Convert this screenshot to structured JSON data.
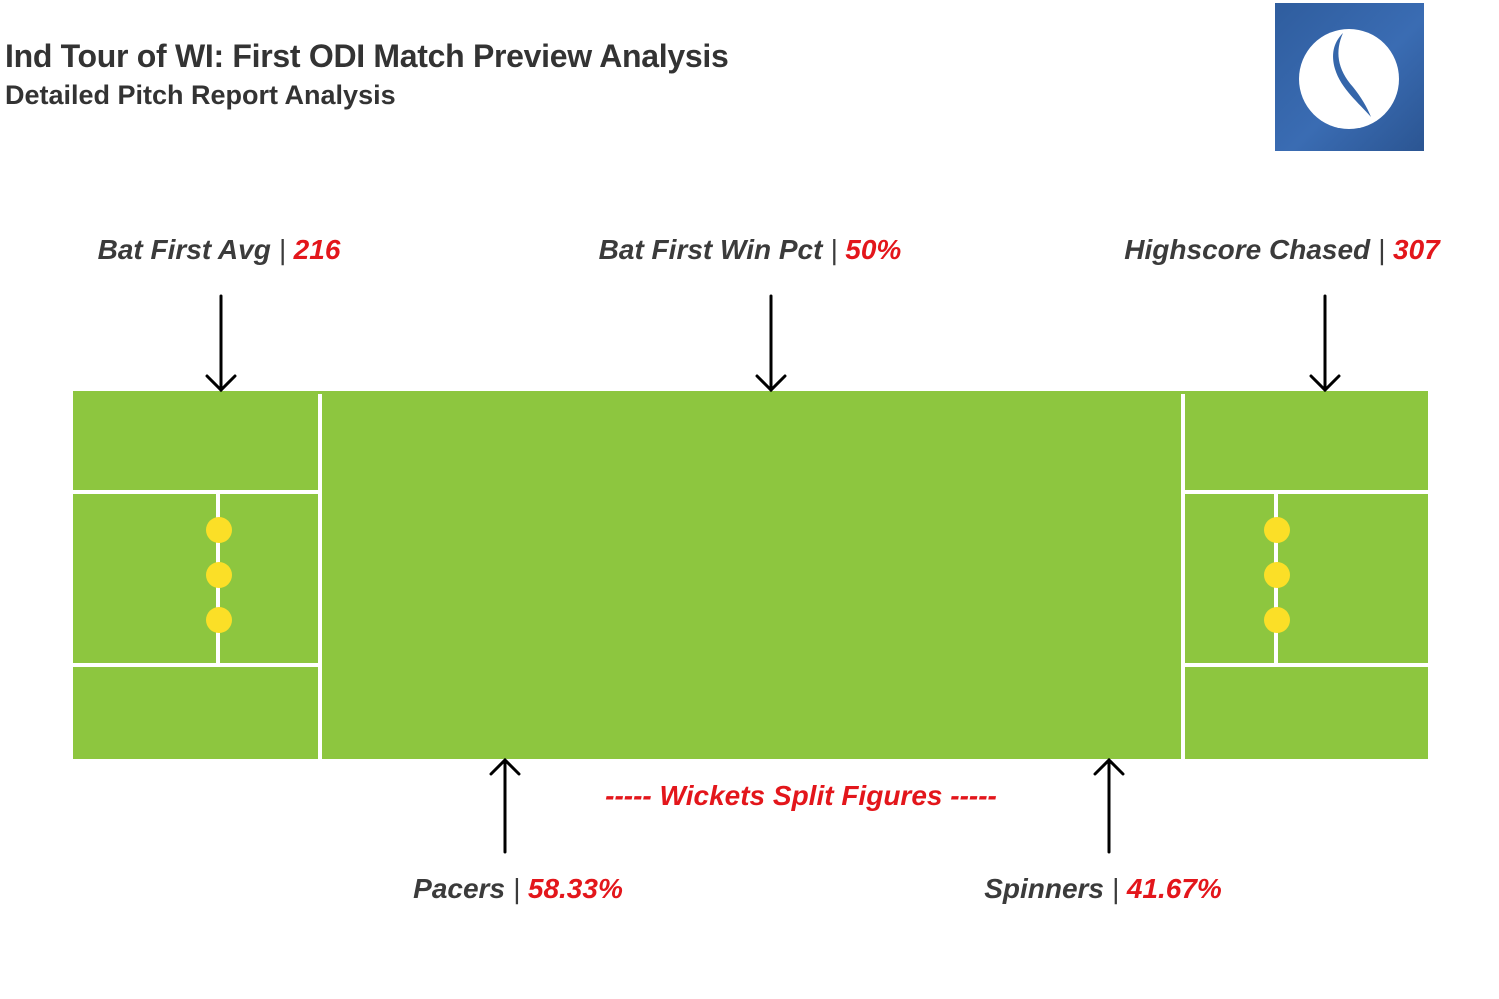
{
  "header": {
    "title": "Ind Tour of WI: First ODI Match Preview Analysis",
    "subtitle": "Detailed Pitch Report Analysis"
  },
  "logo": {
    "icon": "cricket-ball-logo-icon"
  },
  "top_stats": [
    {
      "label": "Bat First Avg",
      "separator": "|",
      "value": "216"
    },
    {
      "label": "Bat First Win Pct",
      "separator": "|",
      "value": "50%"
    },
    {
      "label": "Highscore Chased",
      "separator": "|",
      "value": "307"
    }
  ],
  "wickets": {
    "caption": "----- Wickets Split Figures -----",
    "items": [
      {
        "label": "Pacers",
        "separator": "|",
        "value": "58.33%"
      },
      {
        "label": "Spinners",
        "separator": "|",
        "value": "41.67%"
      }
    ]
  },
  "colors": {
    "pitch_green": "#8dc63f",
    "crease_white": "#ffffff",
    "stumps_yellow": "#fbdf27",
    "value_red": "#e3161b",
    "text_dark": "#3b3b3b",
    "logo_blue": "#3566aa"
  }
}
